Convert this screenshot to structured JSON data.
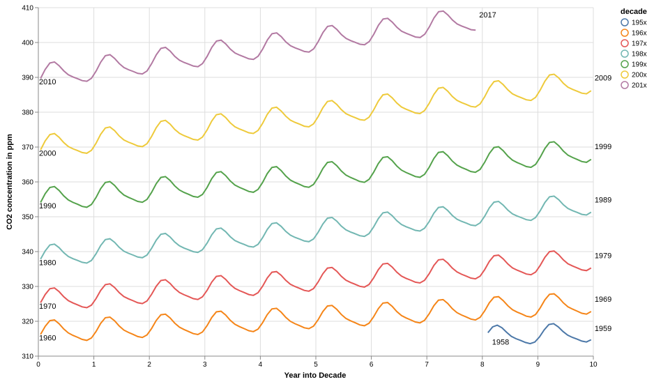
{
  "chart_data": {
    "type": "line",
    "xlabel": "Year into Decade",
    "ylabel": "CO2 concentration in ppm",
    "xlim": [
      0,
      10
    ],
    "ylim": [
      310,
      410
    ],
    "x_ticks": [
      "0",
      "1",
      "2",
      "3",
      "4",
      "5",
      "6",
      "7",
      "8",
      "9",
      "10"
    ],
    "y_ticks": [
      "310",
      "320",
      "330",
      "340",
      "350",
      "360",
      "370",
      "380",
      "390",
      "400",
      "410"
    ],
    "grid": true,
    "legend": {
      "title": "decade",
      "position": "top-right",
      "entries": [
        "195x",
        "196x",
        "197x",
        "198x",
        "199x",
        "200x",
        "201x"
      ]
    },
    "series": [
      {
        "name": "195x",
        "color": "#4c78a8",
        "start_label": "1958",
        "end_label": "1959",
        "start_x": 8.1,
        "start_y": 315.7,
        "end_y": 316.6,
        "trend": 0.9,
        "amp": 2.6,
        "first": 8.1,
        "last": 9.96
      },
      {
        "name": "196x",
        "color": "#f58518",
        "start_label": "1960",
        "end_label": "1969",
        "start_y": 316.7,
        "end_y": 325.0,
        "trend": 8.3,
        "amp": 3.0
      },
      {
        "name": "197x",
        "color": "#e45756",
        "start_label": "1970",
        "end_label": "1979",
        "start_y": 325.8,
        "end_y": 337.5,
        "trend": 11.7,
        "amp": 3.0
      },
      {
        "name": "198x",
        "color": "#72b7b2",
        "start_label": "1980",
        "end_label": "1989",
        "start_y": 338.3,
        "end_y": 353.5,
        "trend": 15.2,
        "amp": 3.0
      },
      {
        "name": "199x",
        "color": "#54a24b",
        "start_label": "1990",
        "end_label": "1999",
        "start_y": 354.6,
        "end_y": 368.8,
        "trend": 14.2,
        "amp": 3.2
      },
      {
        "name": "200x",
        "color": "#eeca3b",
        "start_label": "2000",
        "end_label": "2009",
        "start_y": 369.7,
        "end_y": 388.5,
        "trend": 18.8,
        "amp": 3.2
      },
      {
        "name": "201x",
        "color": "#b279a2",
        "start_label": "2010",
        "end_label": "2017",
        "start_y": 390.2,
        "end_y": 406.6,
        "trend": 16.4,
        "amp": 3.2,
        "last": 7.88
      }
    ]
  }
}
